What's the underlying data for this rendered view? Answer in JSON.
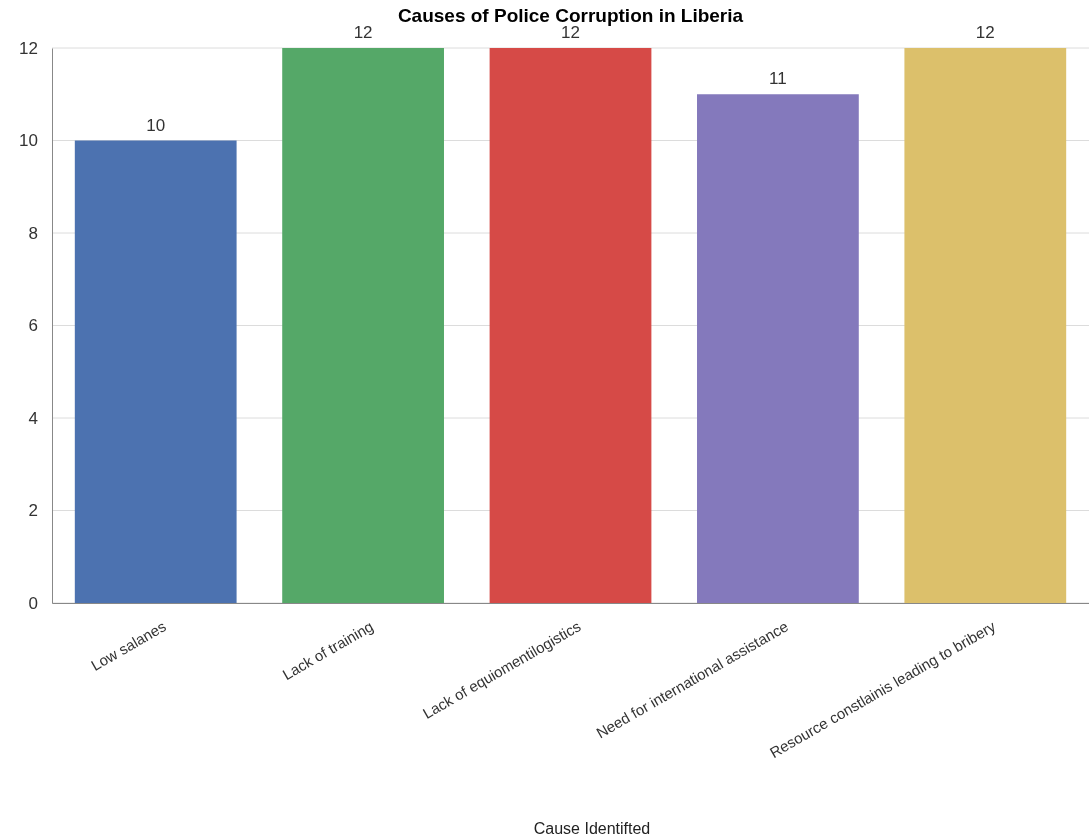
{
  "chart_data": {
    "type": "bar",
    "title": "Causes of Police Corruption in Liberia",
    "xlabel": "Cause Identifted",
    "categories": [
      "Low salanes",
      "Lack of training",
      "Lack of equiomentilogistics",
      "Need for international assistance",
      "Resource constlainis leading to bribery"
    ],
    "values": [
      10,
      12,
      12,
      11,
      12
    ],
    "data_labels": true,
    "colors": [
      "#4c72b0",
      "#55a868",
      "#d64a47",
      "#8479bc",
      "#dcc06b"
    ],
    "ylim": [
      0,
      12
    ],
    "yticks": [
      0,
      2,
      4,
      6,
      8,
      10,
      12
    ],
    "grid": "y"
  }
}
